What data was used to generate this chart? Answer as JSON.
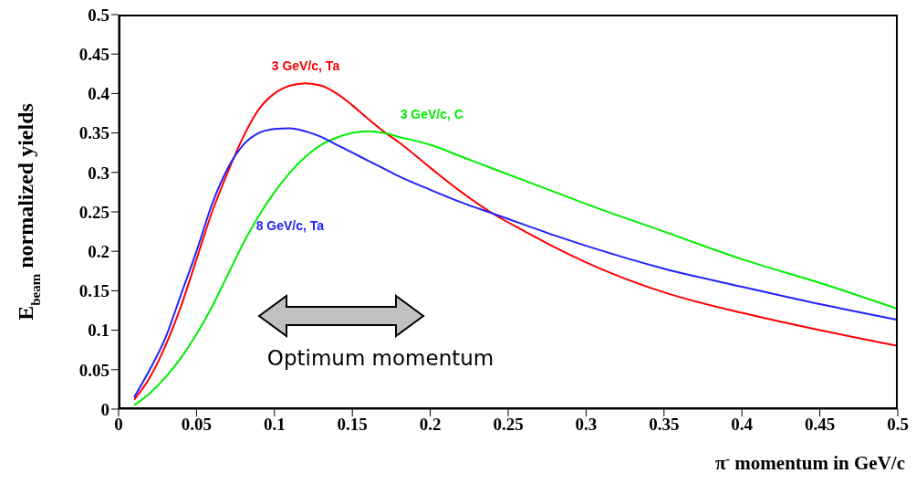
{
  "chart_data": {
    "type": "line",
    "xlabel": "π$^{-}$ momentum in GeV/c",
    "ylabel": "E$_{beam}$ normalized yields",
    "x": [
      0.01,
      0.02,
      0.03,
      0.04,
      0.05,
      0.06,
      0.07,
      0.08,
      0.09,
      0.1,
      0.11,
      0.12,
      0.13,
      0.14,
      0.15,
      0.16,
      0.17,
      0.18,
      0.2,
      0.22,
      0.24,
      0.26,
      0.28,
      0.3,
      0.35,
      0.4,
      0.45,
      0.5
    ],
    "series": [
      {
        "name": "3 GeV/c, Ta",
        "color": "#ff0000",
        "values": [
          0.012,
          0.04,
          0.08,
          0.13,
          0.19,
          0.25,
          0.3,
          0.345,
          0.38,
          0.4,
          0.41,
          0.413,
          0.41,
          0.4,
          0.385,
          0.368,
          0.352,
          0.338,
          0.306,
          0.275,
          0.248,
          0.226,
          0.205,
          0.186,
          0.148,
          0.122,
          0.1,
          0.08
        ]
      },
      {
        "name": "3 GeV/c, C",
        "color": "#00ee00",
        "values": [
          0.005,
          0.02,
          0.04,
          0.065,
          0.095,
          0.13,
          0.17,
          0.21,
          0.245,
          0.275,
          0.3,
          0.32,
          0.335,
          0.344,
          0.35,
          0.352,
          0.35,
          0.345,
          0.335,
          0.32,
          0.305,
          0.29,
          0.275,
          0.26,
          0.225,
          0.19,
          0.16,
          0.127
        ]
      },
      {
        "name": "8 GeV/c, Ta",
        "color": "#2222ff",
        "values": [
          0.015,
          0.05,
          0.09,
          0.145,
          0.2,
          0.26,
          0.305,
          0.335,
          0.35,
          0.355,
          0.356,
          0.352,
          0.345,
          0.335,
          0.325,
          0.315,
          0.305,
          0.295,
          0.278,
          0.262,
          0.248,
          0.234,
          0.22,
          0.207,
          0.178,
          0.155,
          0.133,
          0.113
        ]
      }
    ],
    "xlim": [
      0,
      0.5
    ],
    "xticks": [
      0,
      0.05,
      0.1,
      0.15,
      0.2,
      0.25,
      0.3,
      0.35,
      0.4,
      0.45,
      0.5
    ],
    "ylim": [
      0,
      0.5
    ],
    "yticks": [
      0,
      0.05,
      0.1,
      0.15,
      0.2,
      0.25,
      0.3,
      0.35,
      0.4,
      0.45,
      0.5
    ],
    "grid": false,
    "legend": false,
    "marker": "none",
    "line_style": "solid",
    "annotations": [
      "Optimum momentum"
    ]
  }
}
